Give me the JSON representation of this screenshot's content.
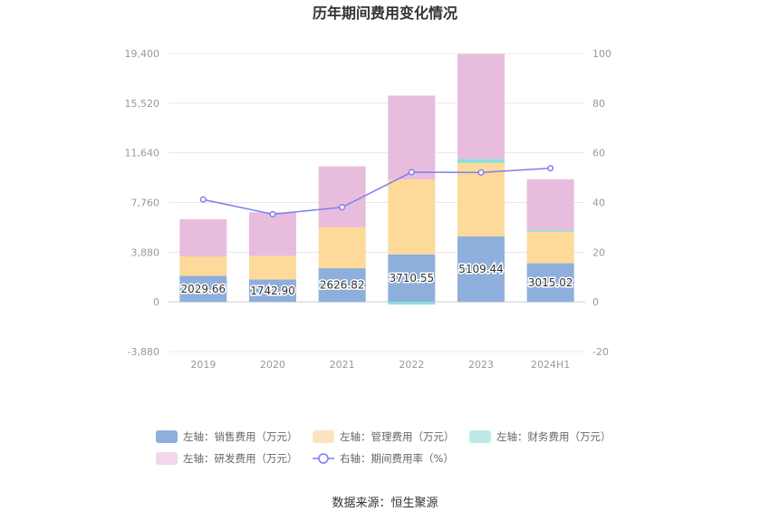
{
  "chart_data": {
    "type": "bar",
    "title": "历年期间费用变化情况",
    "categories": [
      "2019",
      "2020",
      "2021",
      "2022",
      "2023",
      "2024H1"
    ],
    "left_axis": {
      "ylim": [
        -3880,
        19400
      ],
      "ticks": [
        -3880,
        0,
        3880,
        7760,
        11640,
        15520,
        19400
      ],
      "tick_labels": [
        "-3,880",
        "0",
        "3,880",
        "7,760",
        "11,640",
        "15,520",
        "19,400"
      ]
    },
    "right_axis": {
      "ylim": [
        -20,
        100
      ],
      "ticks": [
        -20,
        0,
        20,
        40,
        60,
        80,
        100
      ],
      "tick_labels": [
        "-20",
        "0",
        "20",
        "40",
        "60",
        "80",
        "100"
      ]
    },
    "series": [
      {
        "name": "左轴：销售费用（万元）",
        "color": "#8eafdc",
        "axis": "left",
        "values": [
          2029.66,
          1742.9,
          2626.82,
          3710.55,
          5109.44,
          3015.02
        ],
        "labels": [
          "2029.66",
          "1742.90",
          "2626.82",
          "3710.55",
          "5109.44",
          "3015.02"
        ]
      },
      {
        "name": "左轴：管理费用（万元）",
        "color": "#fdd99a",
        "axis": "left",
        "values": [
          1520,
          1850,
          3200,
          5850,
          5740,
          2480
        ]
      },
      {
        "name": "左轴：财务费用（万元）",
        "color": "#8fdedd",
        "axis": "left",
        "values": [
          0,
          0,
          0,
          -210,
          310,
          130
        ]
      },
      {
        "name": "左轴：研发费用（万元）",
        "color": "#e8bcdc",
        "axis": "left",
        "values": [
          2900,
          3400,
          4750,
          6550,
          8200,
          3950
        ]
      },
      {
        "name": "右轴：期间费用率（%）",
        "color": "#7f7ff0",
        "axis": "right",
        "type": "line",
        "values": [
          41.2,
          35.3,
          38.1,
          52.2,
          52.1,
          53.8
        ]
      }
    ],
    "legend_position": "bottom",
    "source": "数据来源：恒生聚源"
  }
}
